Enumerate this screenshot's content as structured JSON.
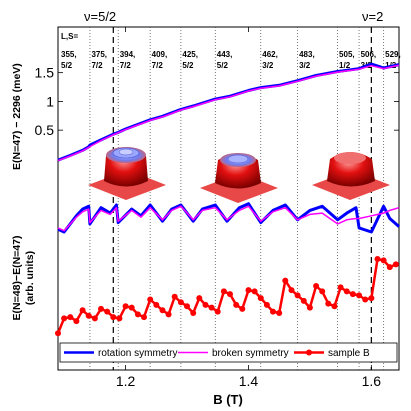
{
  "chart_data": {
    "type": "line",
    "xlabel": "B (T)",
    "xlim": [
      1.09,
      1.645
    ],
    "x_ticks": [
      "1.2",
      "1.4",
      "1.6"
    ],
    "x_tick_values": [
      1.2,
      1.4,
      1.6
    ],
    "filling_labels": [
      {
        "text": "ν=5/2",
        "x": 1.18
      },
      {
        "text": "ν=2",
        "x": 1.6
      }
    ],
    "transitions": [
      {
        "x": 1.142,
        "l1": "375,",
        "l2": "7/2"
      },
      {
        "x": 1.188,
        "l1": "394,",
        "l2": "7/2"
      },
      {
        "x": 1.24,
        "l1": "409,",
        "l2": "7/2"
      },
      {
        "x": 1.29,
        "l1": "425,",
        "l2": "5/2"
      },
      {
        "x": 1.346,
        "l1": "443,",
        "l2": "5/2"
      },
      {
        "x": 1.42,
        "l1": "462,",
        "l2": "3/2"
      },
      {
        "x": 1.48,
        "l1": "483,",
        "l2": "3/2"
      },
      {
        "x": 1.545,
        "l1": "505,",
        "l2": "1/2"
      },
      {
        "x": 1.58,
        "l1": "506,",
        "l2": "3/2"
      },
      {
        "x": 1.62,
        "l1": "529,",
        "l2": "1/2"
      }
    ],
    "first_label": {
      "l0": "L,S=",
      "l1": "355,",
      "l2": "5/2"
    },
    "dashed_lines_x": [
      1.18,
      1.6
    ],
    "top_panel": {
      "ylabel": "E(N=47) − 2296 (meV)",
      "ylim": [
        -0.28,
        1.72
      ],
      "y_ticks": [
        "0.5",
        "1",
        "1.5"
      ],
      "y_tick_values": [
        0.5,
        1.0,
        1.5
      ],
      "series": [
        {
          "name": "rotation symmetry",
          "color": "#0000ff",
          "x": [
            1.09,
            1.11,
            1.13,
            1.14,
            1.142,
            1.16,
            1.18,
            1.188,
            1.2,
            1.22,
            1.24,
            1.26,
            1.29,
            1.31,
            1.346,
            1.37,
            1.4,
            1.42,
            1.45,
            1.48,
            1.51,
            1.545,
            1.56,
            1.58,
            1.6,
            1.62,
            1.645
          ],
          "values": [
            -0.02,
            0.06,
            0.15,
            0.21,
            0.24,
            0.33,
            0.43,
            0.46,
            0.52,
            0.6,
            0.68,
            0.74,
            0.86,
            0.92,
            1.04,
            1.09,
            1.19,
            1.24,
            1.28,
            1.36,
            1.45,
            1.52,
            1.54,
            1.57,
            1.65,
            1.58,
            1.64
          ]
        },
        {
          "name": "broken symmetry",
          "color": "#ff00ff",
          "x": [
            1.09,
            1.11,
            1.13,
            1.14,
            1.16,
            1.18,
            1.2,
            1.22,
            1.24,
            1.26,
            1.29,
            1.31,
            1.346,
            1.37,
            1.4,
            1.42,
            1.45,
            1.48,
            1.51,
            1.545,
            1.56,
            1.58,
            1.6,
            1.62,
            1.645
          ],
          "values": [
            -0.03,
            0.05,
            0.14,
            0.2,
            0.32,
            0.42,
            0.51,
            0.59,
            0.67,
            0.73,
            0.85,
            0.91,
            1.03,
            1.08,
            1.18,
            1.23,
            1.27,
            1.35,
            1.44,
            1.51,
            1.53,
            1.56,
            1.62,
            1.57,
            1.63
          ]
        }
      ]
    },
    "bottom_panel": {
      "ylabel_line1": "E(N=48)−E(N=47)",
      "ylabel_line2": "(arb. units)",
      "ylim": [
        0,
        10
      ],
      "series": [
        {
          "name": "rotation symmetry",
          "color": "#0000ff",
          "x": [
            1.09,
            1.1,
            1.12,
            1.13,
            1.14,
            1.142,
            1.16,
            1.175,
            1.185,
            1.188,
            1.21,
            1.225,
            1.24,
            1.26,
            1.275,
            1.29,
            1.31,
            1.325,
            1.346,
            1.365,
            1.385,
            1.4,
            1.42,
            1.44,
            1.46,
            1.48,
            1.5,
            1.52,
            1.545,
            1.56,
            1.575,
            1.58,
            1.6,
            1.62,
            1.63,
            1.645
          ],
          "values": [
            8.2,
            8.0,
            9.2,
            9.7,
            9.9,
            8.6,
            9.8,
            9.4,
            10.0,
            8.7,
            9.7,
            9.2,
            10.0,
            8.8,
            9.7,
            10.0,
            8.8,
            9.7,
            10.0,
            8.8,
            9.8,
            10.1,
            8.7,
            9.6,
            10.0,
            8.9,
            9.6,
            9.9,
            8.9,
            9.4,
            9.8,
            8.3,
            8.0,
            9.9,
            9.0,
            8.4
          ]
        },
        {
          "name": "broken symmetry",
          "color": "#ff00ff",
          "x": [
            1.09,
            1.1,
            1.12,
            1.13,
            1.14,
            1.142,
            1.16,
            1.175,
            1.185,
            1.188,
            1.21,
            1.225,
            1.24,
            1.26,
            1.275,
            1.29,
            1.31,
            1.325,
            1.346,
            1.365,
            1.385,
            1.4,
            1.42,
            1.44,
            1.46,
            1.48,
            1.5,
            1.52,
            1.545,
            1.56,
            1.575,
            1.58,
            1.6,
            1.62,
            1.63,
            1.645
          ],
          "values": [
            8.3,
            8.1,
            9.1,
            9.5,
            9.7,
            8.7,
            9.6,
            9.3,
            9.8,
            8.8,
            9.6,
            9.1,
            9.8,
            8.9,
            9.6,
            9.9,
            8.9,
            9.6,
            9.8,
            8.9,
            9.6,
            9.9,
            8.8,
            9.5,
            9.8,
            8.9,
            9.3,
            9.4,
            8.6,
            8.9,
            9.0,
            9.0,
            9.2,
            9.4,
            9.6,
            9.8
          ]
        },
        {
          "name": "sample B",
          "color": "#ff0000",
          "x": [
            1.09,
            1.1,
            1.11,
            1.12,
            1.13,
            1.14,
            1.15,
            1.16,
            1.17,
            1.18,
            1.19,
            1.2,
            1.21,
            1.22,
            1.23,
            1.24,
            1.25,
            1.26,
            1.27,
            1.28,
            1.29,
            1.3,
            1.31,
            1.32,
            1.33,
            1.34,
            1.35,
            1.36,
            1.37,
            1.38,
            1.39,
            1.4,
            1.41,
            1.42,
            1.43,
            1.44,
            1.45,
            1.46,
            1.47,
            1.48,
            1.49,
            1.5,
            1.51,
            1.52,
            1.53,
            1.54,
            1.55,
            1.56,
            1.57,
            1.58,
            1.59,
            1.6,
            1.61,
            1.62,
            1.63,
            1.64
          ],
          "values": [
            0.5,
            1.6,
            1.7,
            1.4,
            2.2,
            1.8,
            1.6,
            2.3,
            2.1,
            1.7,
            1.6,
            2.5,
            2.4,
            1.9,
            1.7,
            3.0,
            2.6,
            2.2,
            1.9,
            3.2,
            2.8,
            2.5,
            2.0,
            3.1,
            2.6,
            2.4,
            2.1,
            3.6,
            3.4,
            2.6,
            2.3,
            3.7,
            3.6,
            3.1,
            2.6,
            2.1,
            2.0,
            4.4,
            3.7,
            3.3,
            2.9,
            2.4,
            4.0,
            3.6,
            2.7,
            2.5,
            3.9,
            3.6,
            3.4,
            3.3,
            3.0,
            3.1,
            6.0,
            5.9,
            5.4,
            5.6
          ]
        }
      ]
    },
    "legend": {
      "placement": "bottom",
      "entries": [
        "rotation symmetry",
        "broken symmetry",
        "sample B"
      ]
    },
    "density_insets": [
      {
        "x": 1.225
      },
      {
        "x": 1.4
      },
      {
        "x": 1.565
      }
    ]
  }
}
